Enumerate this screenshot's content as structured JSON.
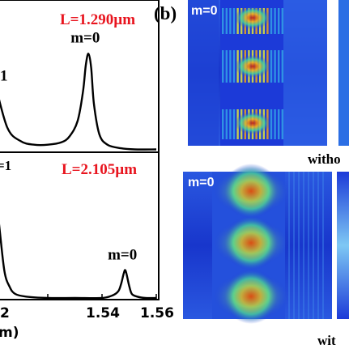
{
  "colors": {
    "annotation_red": "#e8141e",
    "field_blue": "#1432d0"
  },
  "chart_data": [
    {
      "type": "line",
      "panel": "(a)-top",
      "annotation": "L=1.290µm",
      "peak_labels": [
        {
          "text": "1",
          "x": 1.5
        },
        {
          "text": "m=0",
          "x": 1.535
        }
      ],
      "x": [
        1.5,
        1.505,
        1.51,
        1.515,
        1.52,
        1.525,
        1.528,
        1.531,
        1.533,
        1.534,
        1.535,
        1.536,
        1.537,
        1.539,
        1.542,
        1.547,
        1.552,
        1.56
      ],
      "y": [
        0.62,
        0.2,
        0.08,
        0.05,
        0.05,
        0.07,
        0.12,
        0.25,
        0.5,
        0.72,
        0.82,
        0.7,
        0.4,
        0.14,
        0.05,
        0.02,
        0.01,
        0.01
      ],
      "ylim": [
        0,
        1
      ],
      "xlim": [
        1.5,
        1.56
      ],
      "xticks": []
    },
    {
      "type": "line",
      "panel": "(a)-bottom",
      "annotation": "L=2.105µm",
      "corner_label": "=1",
      "peak_labels": [
        {
          "text": "m=0",
          "x": 1.5487
        }
      ],
      "x": [
        1.5,
        1.502,
        1.504,
        1.506,
        1.508,
        1.512,
        1.52,
        1.53,
        1.54,
        1.544,
        1.546,
        1.547,
        1.548,
        1.5487,
        1.55,
        1.551,
        1.553,
        1.556,
        1.56
      ],
      "y": [
        0.88,
        0.55,
        0.2,
        0.08,
        0.03,
        0.01,
        0.0,
        0.0,
        0.0,
        0.02,
        0.05,
        0.1,
        0.18,
        0.2,
        0.09,
        0.03,
        0.01,
        0.0,
        0.0
      ],
      "ylim": [
        0,
        1
      ],
      "xlim": [
        1.5,
        1.56
      ],
      "xticks": [
        "2",
        "1.54",
        "1.56"
      ],
      "xlabel": "m)"
    }
  ],
  "panel_b": {
    "label": "(b)",
    "maps": [
      {
        "label": "m=0",
        "caption": "witho"
      },
      {
        "label": "m=0",
        "caption": "wit"
      }
    ]
  }
}
